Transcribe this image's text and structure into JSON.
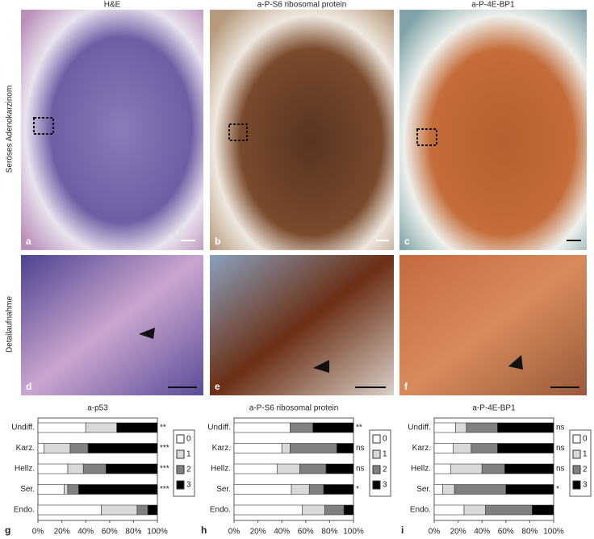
{
  "panels": {
    "column_titles": [
      "H&E",
      "a-P-S6 ribosomal protein",
      "a-P-4E-BP1"
    ],
    "row_labels": [
      "Seröses Adenokarzinom",
      "Detailaufnahme"
    ],
    "letters": [
      "a",
      "b",
      "c",
      "d",
      "e",
      "f"
    ]
  },
  "chart_data": [
    {
      "type": "bar",
      "orientation": "horizontal",
      "stacked": true,
      "panel_label": "g",
      "title": "a-p53",
      "categories": [
        "Undiff.",
        "Karz.",
        "Hellz.",
        "Ser.",
        "Endo."
      ],
      "series": [
        {
          "name": "0",
          "color": "#ffffff",
          "values": [
            40,
            5,
            25,
            22,
            53
          ]
        },
        {
          "name": "1",
          "color": "#d9d9d9",
          "values": [
            26,
            22,
            13,
            3,
            30
          ]
        },
        {
          "name": "2",
          "color": "#808080",
          "values": [
            0,
            15,
            19,
            9,
            9
          ]
        },
        {
          "name": "3",
          "color": "#000000",
          "values": [
            34,
            58,
            43,
            66,
            8
          ]
        }
      ],
      "annotations": [
        "**",
        "***",
        "***",
        "***",
        null
      ],
      "xlim": [
        0,
        100
      ],
      "xticks": [
        {
          "value": 0,
          "label": "0%"
        },
        {
          "value": 20,
          "label": "20%"
        },
        {
          "value": 40,
          "label": "40%"
        },
        {
          "value": 60,
          "label": "60%"
        },
        {
          "value": 80,
          "label": "80%"
        },
        {
          "value": 100,
          "label": "100%"
        }
      ]
    },
    {
      "type": "bar",
      "orientation": "horizontal",
      "stacked": true,
      "panel_label": "h",
      "title": "a-P-S6 ribosomal protein",
      "categories": [
        "Undiff.",
        "Karz.",
        "Hellz.",
        "Ser.",
        "Endo."
      ],
      "series": [
        {
          "name": "0",
          "color": "#ffffff",
          "values": [
            47,
            40,
            36,
            48,
            57
          ]
        },
        {
          "name": "1",
          "color": "#d9d9d9",
          "values": [
            0,
            7,
            19,
            15,
            19
          ]
        },
        {
          "name": "2",
          "color": "#808080",
          "values": [
            19,
            39,
            22,
            12,
            16
          ]
        },
        {
          "name": "3",
          "color": "#000000",
          "values": [
            34,
            14,
            23,
            25,
            8
          ]
        }
      ],
      "annotations": [
        "**",
        "ns",
        "ns",
        "*",
        null
      ],
      "xlim": [
        0,
        100
      ],
      "xticks": [
        {
          "value": 0,
          "label": "0%"
        },
        {
          "value": 20,
          "label": "20%"
        },
        {
          "value": 40,
          "label": "40%"
        },
        {
          "value": 60,
          "label": "60%"
        },
        {
          "value": 80,
          "label": "80%"
        },
        {
          "value": 100,
          "label": "100%"
        }
      ]
    },
    {
      "type": "bar",
      "orientation": "horizontal",
      "stacked": true,
      "panel_label": "i",
      "title": "a-P-4E-BP1",
      "categories": [
        "Undiff.",
        "Karz.",
        "Hellz.",
        "Ser.",
        "Endo."
      ],
      "series": [
        {
          "name": "0",
          "color": "#ffffff",
          "values": [
            18,
            16,
            14,
            7,
            25
          ]
        },
        {
          "name": "1",
          "color": "#d9d9d9",
          "values": [
            9,
            15,
            26,
            10,
            18
          ]
        },
        {
          "name": "2",
          "color": "#808080",
          "values": [
            26,
            22,
            19,
            43,
            39
          ]
        },
        {
          "name": "3",
          "color": "#000000",
          "values": [
            47,
            47,
            41,
            40,
            18
          ]
        }
      ],
      "annotations": [
        "ns",
        "ns",
        "ns",
        "*",
        null
      ],
      "xlim": [
        0,
        100
      ],
      "xticks": [
        {
          "value": 0,
          "label": "0%"
        },
        {
          "value": 20,
          "label": "20%"
        },
        {
          "value": 40,
          "label": "40%"
        },
        {
          "value": 60,
          "label": "60%"
        },
        {
          "value": 80,
          "label": "80%"
        },
        {
          "value": 100,
          "label": "100%"
        }
      ]
    }
  ]
}
